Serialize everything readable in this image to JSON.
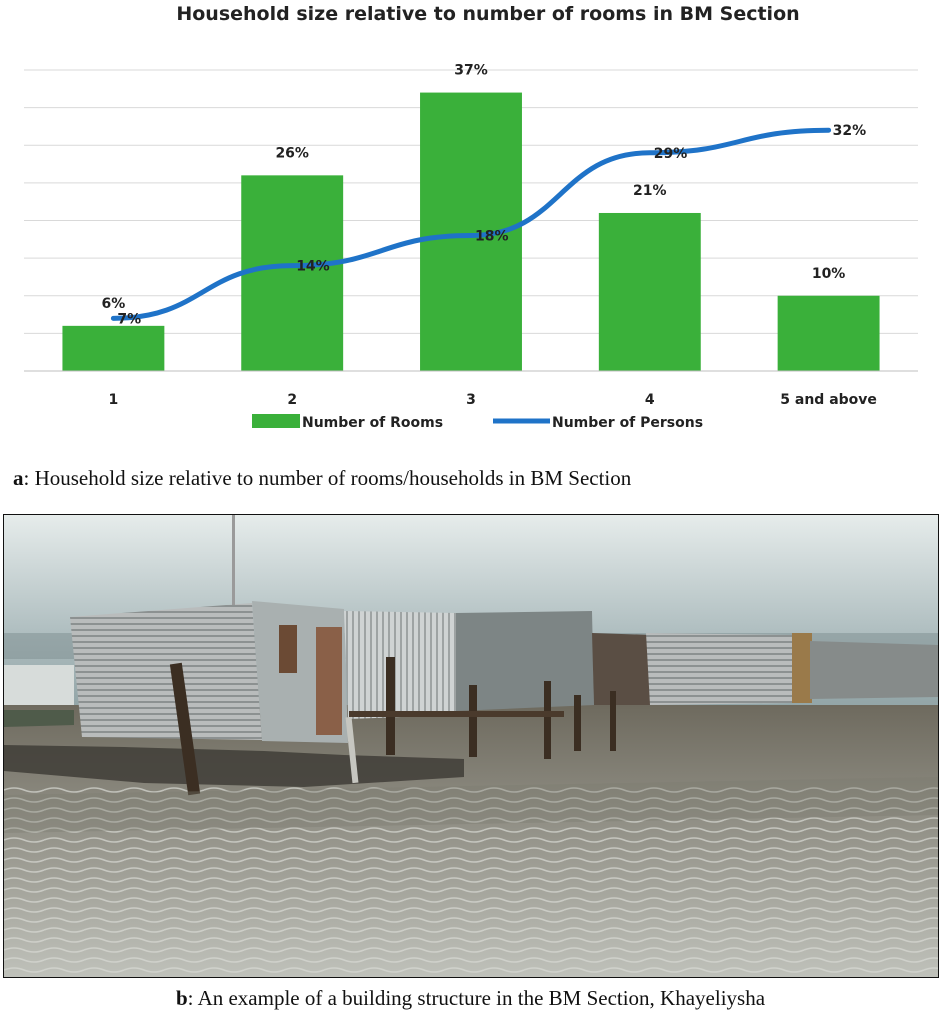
{
  "chart_data": {
    "type": "bar+line",
    "title": "Household size relative to number of rooms in BM  Section",
    "categories": [
      "1",
      "2",
      "3",
      "4",
      "5 and above"
    ],
    "series": [
      {
        "name": "Number of Rooms",
        "type": "bar",
        "color": "#3ab03a",
        "values": [
          6,
          26,
          37,
          21,
          10
        ],
        "labels": [
          "6%",
          "26%",
          "37%",
          "21%",
          "10%"
        ]
      },
      {
        "name": "Number of Persons",
        "type": "line",
        "color": "#1f73c8",
        "values": [
          7,
          14,
          18,
          29,
          32
        ],
        "labels": [
          "7%",
          "14%",
          "18%",
          "29%",
          "32%"
        ]
      }
    ],
    "xlabel": "",
    "ylabel": "",
    "ylim": [
      0,
      40
    ],
    "grid": true,
    "legend": "bottom"
  },
  "captions": {
    "a_letter": "a",
    "a_text": ": Household size relative to number of rooms/households in BM Section",
    "b_letter": "b",
    "b_text": ": An example of a building structure in the BM Section, Khayeliysha"
  },
  "photo": {
    "subject": "corrugated metal shacks standing in flood water under an overcast sky"
  }
}
